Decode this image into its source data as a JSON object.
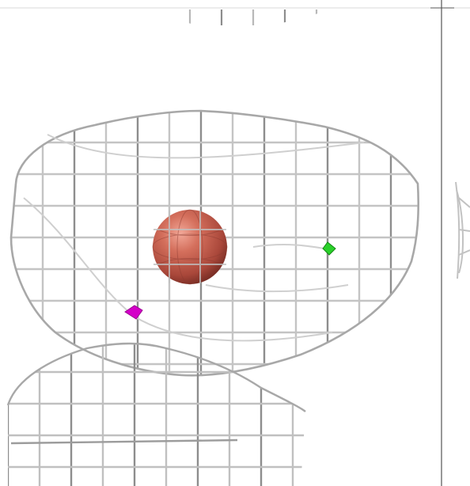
{
  "scene": {
    "background": "#ffffff",
    "wire_color": "#bdbdbd",
    "wire_dark": "#7a7a7a",
    "sphere_color": "#c8604e",
    "marker_magenta": "#d400c8",
    "marker_green": "#1ecc1e",
    "objects": [
      "upper-mesh-fragment",
      "main-wireframe-mesh",
      "lower-wireframe-mesh",
      "right-mesh-fragment",
      "central-sphere"
    ],
    "markers": [
      "magenta-marker-icon",
      "green-marker-icon"
    ]
  }
}
